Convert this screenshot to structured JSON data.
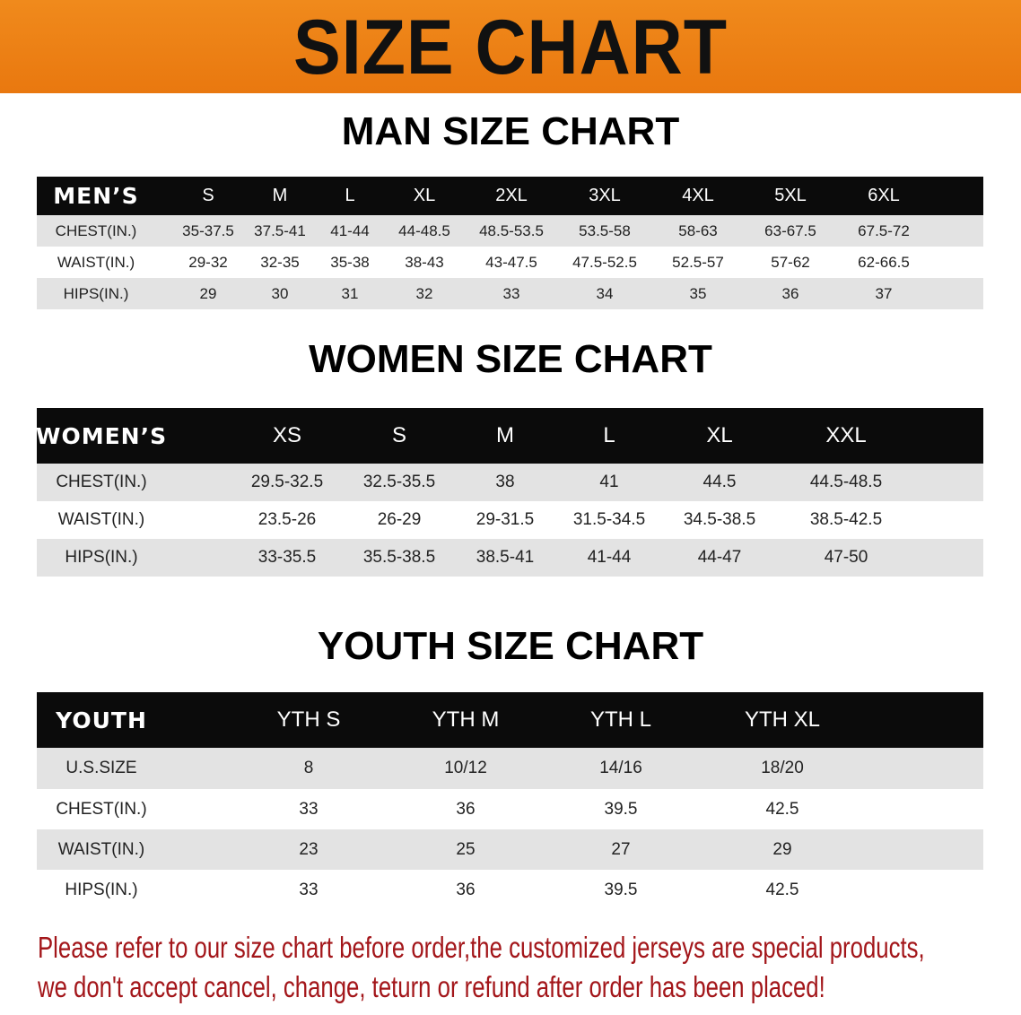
{
  "banner_title": "SIZE CHART",
  "sections": {
    "men": {
      "title": "MAN SIZE CHART",
      "header": [
        "MEN’S",
        "S",
        "M",
        "L",
        "XL",
        "2XL",
        "3XL",
        "4XL",
        "5XL",
        "6XL"
      ],
      "rows": [
        [
          "CHEST(IN.)",
          "35-37.5",
          "37.5-41",
          "41-44",
          "44-48.5",
          "48.5-53.5",
          "53.5-58",
          "58-63",
          "63-67.5",
          "67.5-72"
        ],
        [
          "WAIST(IN.)",
          "29-32",
          "32-35",
          "35-38",
          "38-43",
          "43-47.5",
          "47.5-52.5",
          "52.5-57",
          "57-62",
          "62-66.5"
        ],
        [
          "HIPS(IN.)",
          "29",
          "30",
          "31",
          "32",
          "33",
          "34",
          "35",
          "36",
          "37"
        ]
      ]
    },
    "women": {
      "title": "WOMEN SIZE CHART",
      "header": [
        "WOMEN’S",
        "XS",
        "S",
        "M",
        "L",
        "XL",
        "XXL"
      ],
      "rows": [
        [
          "CHEST(IN.)",
          "29.5-32.5",
          "32.5-35.5",
          "38",
          "41",
          "44.5",
          "44.5-48.5"
        ],
        [
          "WAIST(IN.)",
          "23.5-26",
          "26-29",
          "29-31.5",
          "31.5-34.5",
          "34.5-38.5",
          "38.5-42.5"
        ],
        [
          "HIPS(IN.)",
          "33-35.5",
          "35.5-38.5",
          "38.5-41",
          "41-44",
          "44-47",
          "47-50"
        ]
      ]
    },
    "youth": {
      "title": "YOUTH SIZE CHART",
      "header": [
        "YOUTH",
        "YTH S",
        "YTH M",
        "YTH L",
        "YTH XL"
      ],
      "rows": [
        [
          "U.S.SIZE",
          "8",
          "10/12",
          "14/16",
          "18/20"
        ],
        [
          "CHEST(IN.)",
          "33",
          "36",
          "39.5",
          "42.5"
        ],
        [
          "WAIST(IN.)",
          "23",
          "25",
          "27",
          "29"
        ],
        [
          "HIPS(IN.)",
          "33",
          "36",
          "39.5",
          "42.5"
        ]
      ]
    }
  },
  "notice": [
    "Please refer to our size chart before order,the customized jerseys are special products,",
    "we don't accept cancel, change, teturn or refund after order has been placed!"
  ],
  "colors": {
    "banner": "#ec7f15",
    "header_bg": "#0b0b0b",
    "stripe": "#e3e3e3",
    "notice": "#a3161a"
  }
}
